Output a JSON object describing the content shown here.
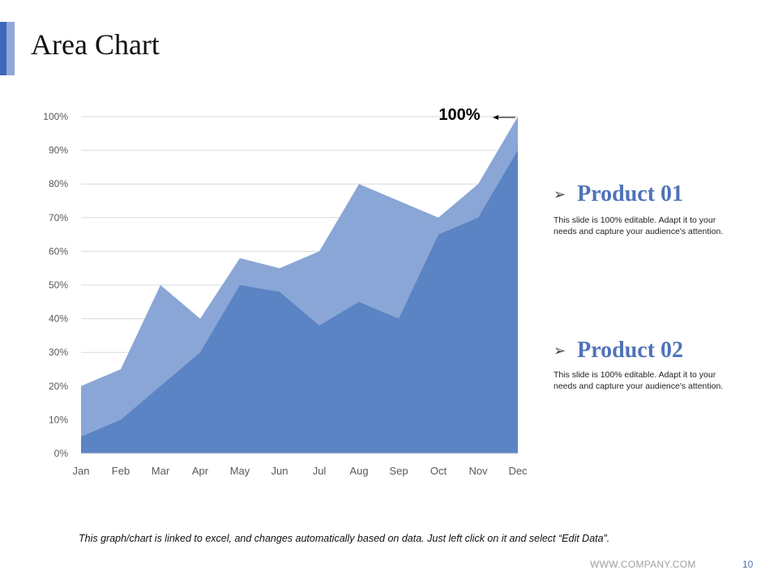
{
  "slide": {
    "title": "Area Chart",
    "footnote": "This graph/chart is linked to excel, and changes automatically based on data.  Just left click on it and select “Edit Data”.",
    "website": "WWW.COMPANY.COM",
    "page_number": "10"
  },
  "products": [
    {
      "name": "Product 01",
      "description": "This slide is 100% editable. Adapt it to your needs and capture your audience's attention."
    },
    {
      "name": "Product 02",
      "description": "This slide is 100% editable. Adapt it to your needs and capture your audience's attention."
    }
  ],
  "colors": {
    "accent": "#4f73b8",
    "series_back": "#8aa6d6",
    "series_front": "#5b84c4"
  },
  "chart_data": {
    "type": "area",
    "categories": [
      "Jan",
      "Feb",
      "Mar",
      "Apr",
      "May",
      "Jun",
      "Jul",
      "Aug",
      "Sep",
      "Oct",
      "Nov",
      "Dec"
    ],
    "series": [
      {
        "name": "Product 01",
        "values": [
          20,
          25,
          50,
          40,
          58,
          55,
          60,
          80,
          75,
          70,
          80,
          100
        ],
        "color": "#8aa6d6"
      },
      {
        "name": "Product 02",
        "values": [
          5,
          10,
          20,
          30,
          50,
          48,
          38,
          45,
          40,
          65,
          70,
          90
        ],
        "color": "#5b84c4"
      }
    ],
    "y_ticks": [
      "0%",
      "10%",
      "20%",
      "30%",
      "40%",
      "50%",
      "60%",
      "70%",
      "80%",
      "90%",
      "100%"
    ],
    "ylim": [
      0,
      100
    ],
    "grid": true,
    "annotation": {
      "text": "100%",
      "category": "Dec",
      "value": 100
    }
  }
}
